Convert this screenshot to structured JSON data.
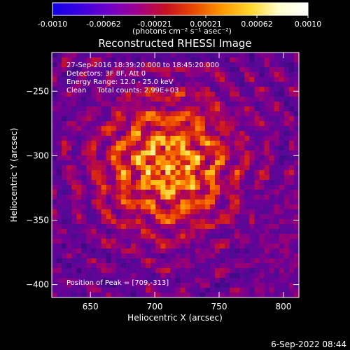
{
  "colorbar": {
    "tick_labels": [
      "-0.0010",
      "-0.00062",
      "-0.00021",
      "0.00021",
      "0.00062",
      "0.0010"
    ],
    "unit_label": "(photons cm⁻² s⁻¹ asec⁻²)",
    "stops": [
      "#1200e6",
      "#3c00e0",
      "#7000c8",
      "#a0008c",
      "#c81020",
      "#e84a00",
      "#ff9a00",
      "#ffd830",
      "#ffffd0",
      "#ffffff"
    ],
    "range": [
      -0.001,
      0.001
    ]
  },
  "title": "Reconstructed RHESSI Image",
  "annotations": [
    "27-Sep-2016 18:39:20.000 to 18:45:20.000",
    "Detectors: 3F 8F, Att 0",
    "Energy Range: 12.0 - 25.0 keV",
    "Clean     Total counts: 2.99E+03"
  ],
  "peak_label": "Position of Peak = [709,-313]",
  "timestamp": "6-Sep-2022 08:44",
  "chart_data": {
    "type": "heatmap",
    "title": "Reconstructed RHESSI Image",
    "xlabel": "Heliocentric X (arcsec)",
    "ylabel": "Heliocentric Y (arcsec)",
    "xlim": [
      620,
      812
    ],
    "ylim": [
      -410,
      -220
    ],
    "xticks": [
      650,
      700,
      750,
      800
    ],
    "yticks": [
      -250,
      -300,
      -350,
      -400
    ],
    "xtick_labels": [
      "650",
      "700",
      "750",
      "800"
    ],
    "ytick_labels": [
      "−250",
      "−300",
      "−350",
      "−400"
    ],
    "peak": [
      709,
      -313
    ],
    "color_range": [
      -0.001,
      0.001
    ]
  }
}
